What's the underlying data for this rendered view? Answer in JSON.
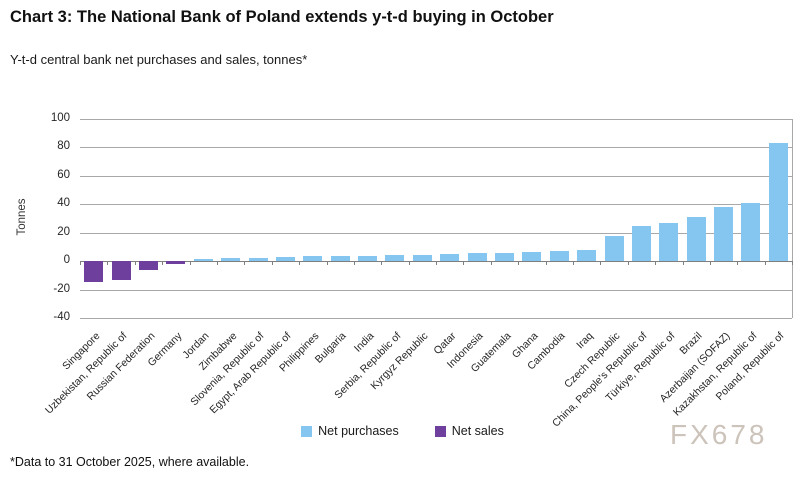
{
  "header": {
    "title": "Chart 3: The National Bank of Poland extends y-t-d buying in October",
    "subtitle": "Y-t-d central bank net purchases and sales, tonnes*"
  },
  "legend": {
    "items": [
      {
        "label": "Net purchases",
        "color": "#85C6F0"
      },
      {
        "label": "Net sales",
        "color": "#6E3F9D"
      }
    ]
  },
  "footer": {
    "note": "*Data to 31 October 2025, where available.",
    "watermark": "FX678"
  },
  "colors": {
    "net_purchases_bar": "#85C6F0",
    "net_sales_bar": "#6E3F9D",
    "gridline": "#A8A8A8",
    "axis_line": "#7F7F7F",
    "watermark_text": "#CCC3BA"
  },
  "chart_data": {
    "type": "bar",
    "title": "Chart 3: The National Bank of Poland extends y-t-d buying in October",
    "subtitle": "Y-t-d central bank net purchases and sales, tonnes*",
    "xlabel": "",
    "ylabel": "Tonnes",
    "ylim": [
      -40,
      100
    ],
    "yticks": [
      100,
      80,
      60,
      40,
      20,
      0,
      -20,
      -40
    ],
    "grid": true,
    "legend_position": "bottom",
    "categories": [
      "Singapore",
      "Uzbekistan, Republic of",
      "Russian Federation",
      "Germany",
      "Jordan",
      "Zimbabwe",
      "Slovenia, Republic of",
      "Egypt, Arab Republic of",
      "Philippines",
      "Bulgaria",
      "India",
      "Serbia, Republic of",
      "Kyrgyz Republic",
      "Qatar",
      "Indonesia",
      "Guatemala",
      "Ghana",
      "Cambodia",
      "Iraq",
      "Czech Republic",
      "China, People's Republic of",
      "Türkiye, Republic of",
      "Brazil",
      "Azerbaijan (SOFAZ)",
      "Kazakhstan, Republic of",
      "Poland, Republic of"
    ],
    "values": [
      -15,
      -13,
      -6,
      -2,
      1.5,
      2,
      2.5,
      3,
      3.5,
      4,
      4,
      4.5,
      4.5,
      5,
      5.5,
      6,
      6.5,
      7,
      8,
      18,
      25,
      27,
      31,
      38,
      41,
      83
    ],
    "series": [
      {
        "name": "Net purchases",
        "color": "#85C6F0",
        "applies_to": "positive values"
      },
      {
        "name": "Net sales",
        "color": "#6E3F9D",
        "applies_to": "negative values"
      }
    ]
  }
}
